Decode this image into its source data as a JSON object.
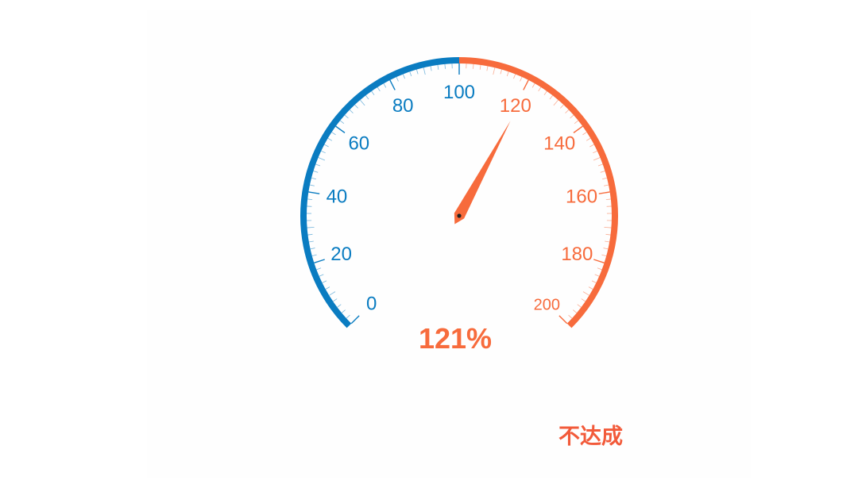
{
  "chart_data": {
    "type": "gauge",
    "min": 0,
    "max": 200,
    "value": 121,
    "value_label": "121%",
    "threshold": 100,
    "tick_labels": [
      "0",
      "20",
      "40",
      "60",
      "80",
      "100",
      "120",
      "140",
      "160",
      "180",
      "200"
    ],
    "major_tick_step": 20,
    "minor_tick_step": 2,
    "bands": [
      {
        "from": 0,
        "to": 100,
        "color": "#0a7cc1"
      },
      {
        "from": 100,
        "to": 200,
        "color": "#f76b3c"
      }
    ]
  },
  "status": {
    "label": "不达成",
    "color": "#f25a3a"
  }
}
